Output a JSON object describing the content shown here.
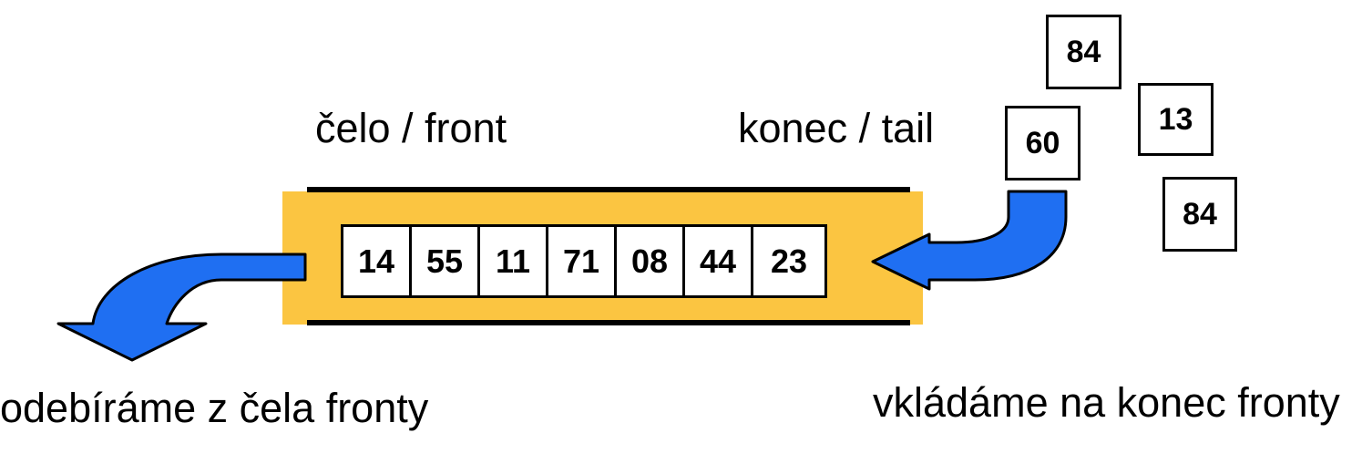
{
  "labels": {
    "front": "čelo / front",
    "tail": "konec / tail",
    "dequeue_caption": "odebíráme z čela fronty",
    "enqueue_caption": "vkládáme na konec fronty"
  },
  "queue": {
    "values": [
      "14",
      "55",
      "11",
      "71",
      "08",
      "44",
      "23"
    ]
  },
  "pending": {
    "values": [
      "60",
      "84",
      "13",
      "84"
    ]
  },
  "colors": {
    "queue_band": "#fbc541",
    "arrow_fill": "#1f6ff2",
    "outline": "#000000",
    "box_fill": "#ffffff"
  }
}
